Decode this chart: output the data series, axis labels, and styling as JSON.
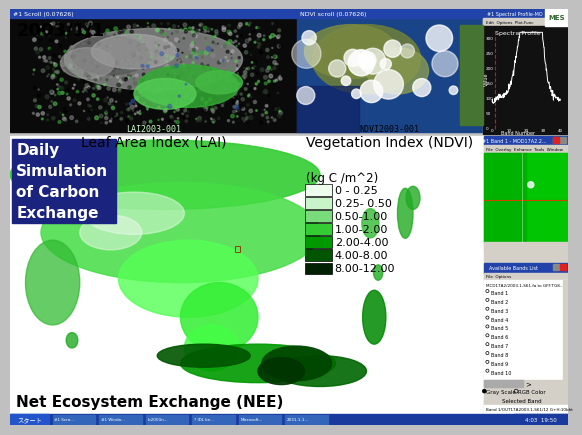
{
  "title_date": "2003/1/1",
  "label_lai": "Leaf Area Index (LAI)",
  "label_ndvi": "Vegetation Index (NDVI)",
  "label_daily": "Daily\nSimulation\nof Carbon\nExchange",
  "label_nee": "Net Ecosystem Exchange (NEE)",
  "legend_title": "(kg C /m^2)",
  "legend_labels": [
    "0 - 0.25",
    "0.25- 0.50",
    "0.50-1.00",
    "1.00-2.00",
    "2.00-4.00",
    "4.00-8.00",
    "8.00-12.00"
  ],
  "legend_colors": [
    "#edfced",
    "#c8f5c8",
    "#7adb7a",
    "#33cc33",
    "#009900",
    "#005500",
    "#002200"
  ],
  "bg_color": "#c0c0c0",
  "daily_box_color": "#1a237e",
  "daily_text_color": "#ffffff",
  "date_text_color": "#000000",
  "nee_text_color": "#000000",
  "label_text_color": "#000000",
  "taskbar_color": "#1a3a9e",
  "top_bar_color": "#3355aa",
  "spectral_bg": "#111111",
  "right_green_panel": "#00cc00",
  "right_panel_bg": "#d4d0c8"
}
